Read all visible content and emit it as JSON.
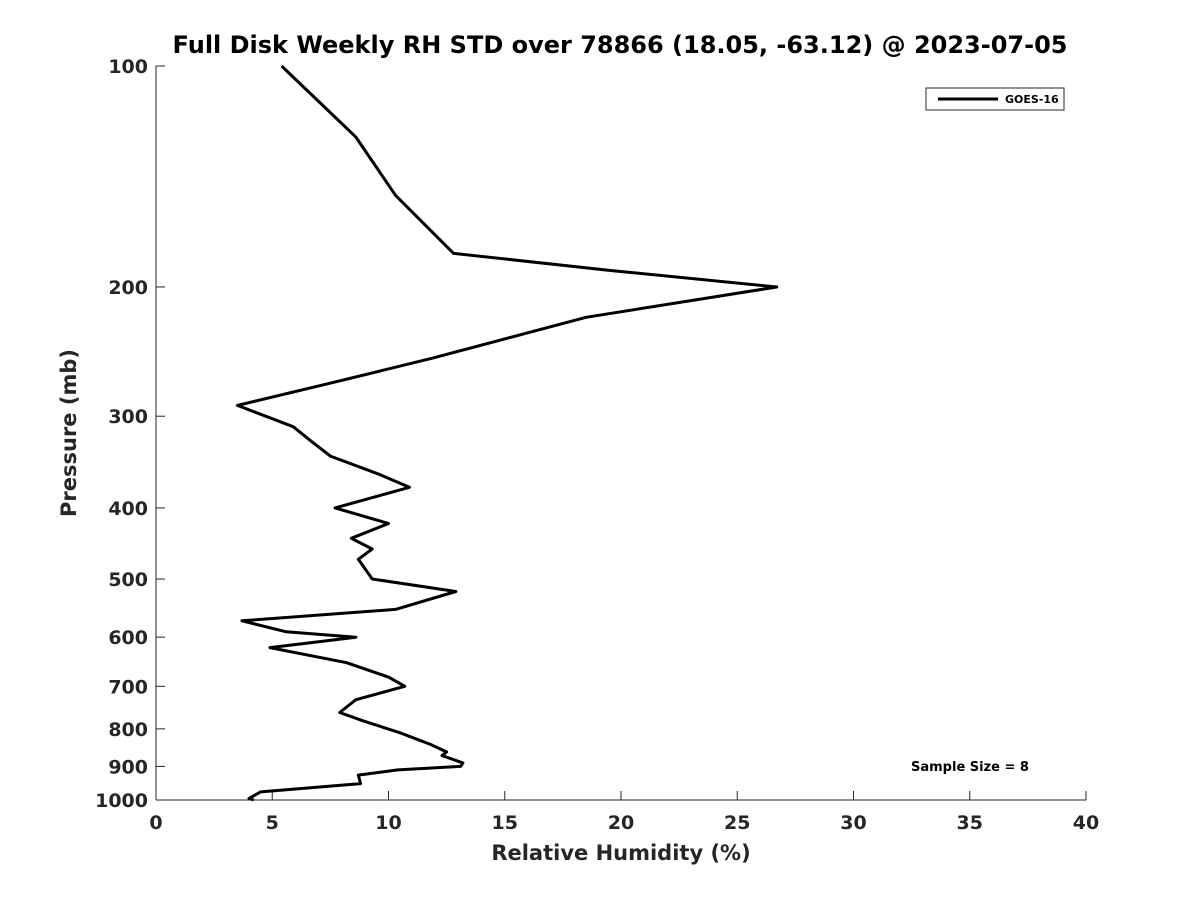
{
  "chart_data": {
    "type": "line",
    "title": "Full Disk Weekly RH STD over 78866 (18.05, -63.12) @ 2023-07-05",
    "xlabel": "Relative Humidity (%)",
    "ylabel": "Pressure (mb)",
    "xlim": [
      0,
      40
    ],
    "ylim": [
      100,
      1000
    ],
    "y_scale": "log",
    "y_inverted": true,
    "grid": false,
    "x_ticks": [
      0,
      5,
      10,
      15,
      20,
      25,
      30,
      35,
      40
    ],
    "y_ticks": [
      100,
      200,
      300,
      400,
      500,
      600,
      700,
      800,
      900,
      1000
    ],
    "legend": {
      "placement": "top-right",
      "entries": [
        "GOES-16"
      ]
    },
    "annotation": "Sample Size = 8",
    "series": [
      {
        "name": "GOES-16",
        "color": "#000000",
        "points": [
          [
            5.4,
            100
          ],
          [
            8.6,
            125
          ],
          [
            10.3,
            150
          ],
          [
            12.8,
            180
          ],
          [
            19.6,
            190
          ],
          [
            26.7,
            200
          ],
          [
            18.5,
            220
          ],
          [
            11.9,
            250
          ],
          [
            7.6,
            270
          ],
          [
            3.5,
            290
          ],
          [
            5.9,
            310
          ],
          [
            6.7,
            325
          ],
          [
            7.5,
            340
          ],
          [
            9.6,
            360
          ],
          [
            10.9,
            375
          ],
          [
            7.7,
            400
          ],
          [
            10.0,
            420
          ],
          [
            8.4,
            440
          ],
          [
            9.3,
            455
          ],
          [
            8.7,
            470
          ],
          [
            9.3,
            500
          ],
          [
            12.9,
            520
          ],
          [
            10.3,
            550
          ],
          [
            3.7,
            570
          ],
          [
            5.6,
            590
          ],
          [
            8.6,
            600
          ],
          [
            4.9,
            620
          ],
          [
            8.2,
            650
          ],
          [
            10.0,
            680
          ],
          [
            10.7,
            700
          ],
          [
            8.6,
            730
          ],
          [
            7.9,
            760
          ],
          [
            8.9,
            780
          ],
          [
            10.5,
            810
          ],
          [
            11.8,
            840
          ],
          [
            12.5,
            860
          ],
          [
            12.3,
            870
          ],
          [
            13.2,
            890
          ],
          [
            13.1,
            900
          ],
          [
            10.4,
            910
          ],
          [
            8.7,
            925
          ],
          [
            8.8,
            950
          ],
          [
            4.5,
            975
          ],
          [
            4.0,
            995
          ],
          [
            4.2,
            1000
          ]
        ]
      }
    ]
  }
}
